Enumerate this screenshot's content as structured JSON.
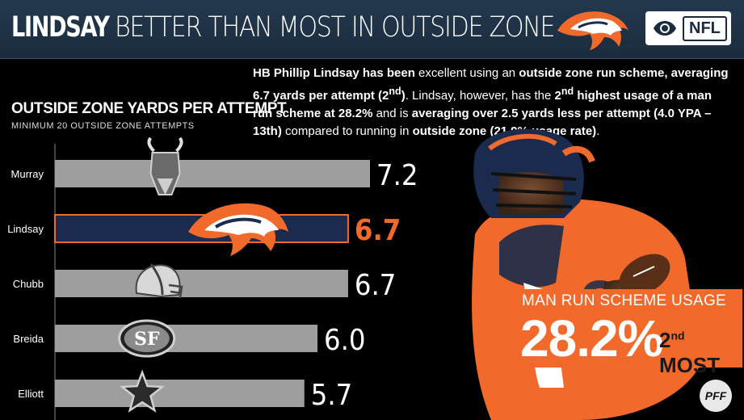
{
  "header": {
    "title_bold": "LINDSAY",
    "title_rest": "BETTER THAN MOST IN OUTSIDE ZONE",
    "logo": "broncos-logo",
    "network_logo": "cbs-eye-icon",
    "league_logo_text": "NFL"
  },
  "description": {
    "p1": "HB Phillip Lindsay has been ",
    "p2": "excellent using an ",
    "p3": "outside zone run scheme, averaging 6.7 yards per attempt (2",
    "p4": "nd",
    "p5": ")",
    "p6": ". Lindsay, however, has the ",
    "p7": "2",
    "p8": "nd",
    "p9": " highest usage of a man run scheme at 28.2%",
    "p10": " and is ",
    "p11": "averaging over 2.5 yards less per attempt (4.0 YPA – 13th)",
    "p12": " compared to running in ",
    "p13": "outside zone (21.9% usage rate)",
    "p14": "."
  },
  "chart_data": {
    "type": "bar",
    "title": "OUTSIDE ZONE YARDS PER ATTEMPT",
    "subtitle": "MINIMUM 20 OUTSIDE ZONE ATTEMPTS",
    "categories": [
      "Murray",
      "Lindsay",
      "Chubb",
      "Breida",
      "Elliott"
    ],
    "values": [
      7.2,
      6.7,
      6.7,
      6.0,
      5.7
    ],
    "value_labels": [
      "7.2",
      "6.7",
      "6.7",
      "6.0",
      "5.7"
    ],
    "team_logos": [
      "vikings-logo",
      "broncos-logo",
      "browns-helmet-icon",
      "49ers-logo",
      "cowboys-star-icon"
    ],
    "highlight": "Lindsay",
    "colors": {
      "bar": "#9e9e9e",
      "highlight_bar": "#1a2b4d",
      "highlight_border": "#f26a2b",
      "highlight_label": "#f26a2b",
      "label": "#ffffff"
    },
    "orientation": "horizontal",
    "xlim": [
      0,
      7.2
    ]
  },
  "usage": {
    "label": "MAN RUN SCHEME USAGE",
    "value": "28.2%",
    "rank_num": "2",
    "rank_sup": "nd",
    "rank_text": " MOST"
  },
  "footer": {
    "brand": "PFF"
  },
  "colors": {
    "header_bg": "#1a2b3d",
    "accent": "#f26a2b",
    "background": "#000000"
  }
}
